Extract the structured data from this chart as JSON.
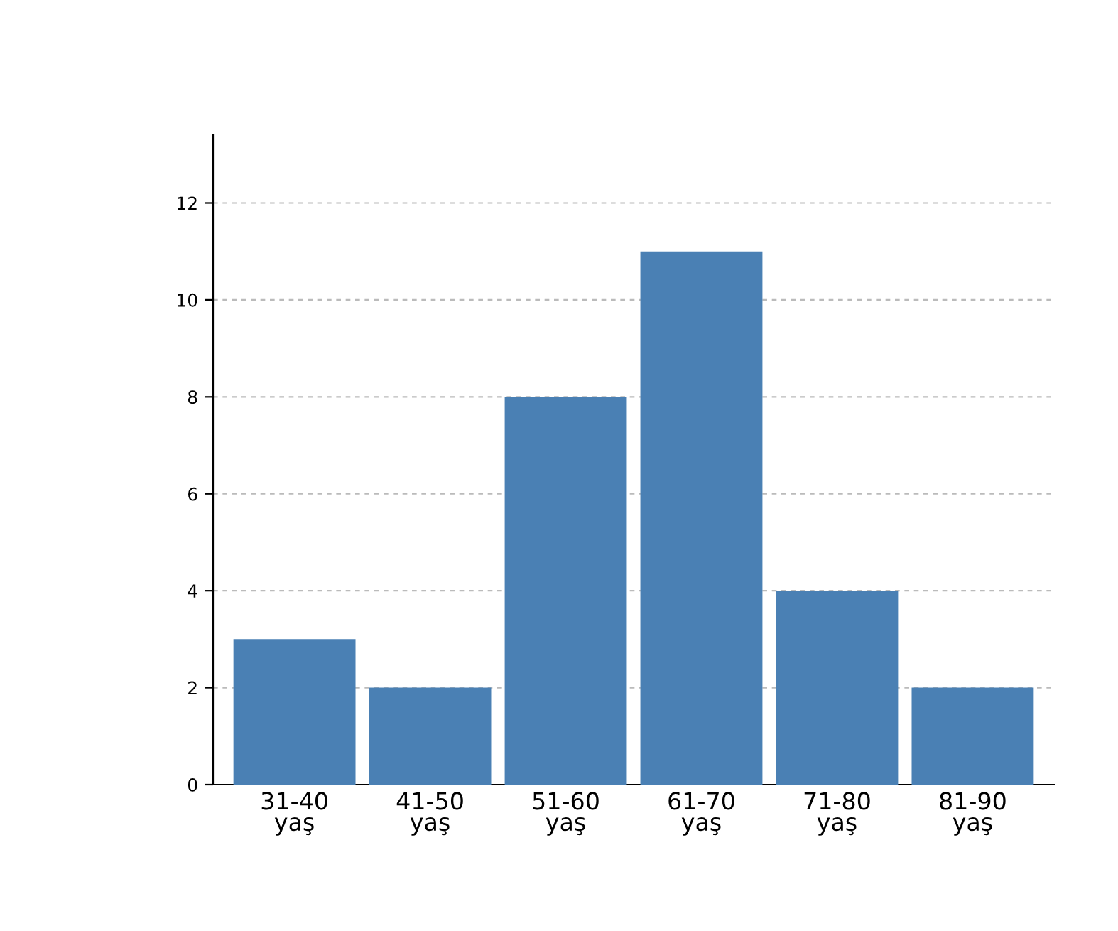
{
  "chart_data": {
    "type": "bar",
    "categories": [
      "31-40\nyaş",
      "41-50\nyaş",
      "51-60\nyaş",
      "61-70\nyaş",
      "71-80\nyaş",
      "81-90\nyaş"
    ],
    "values": [
      3,
      2,
      8,
      11,
      4,
      2
    ],
    "color": "#4a80b4",
    "ylim": [
      0,
      13.4
    ],
    "yticks": [
      0,
      2,
      4,
      6,
      8,
      10,
      12
    ],
    "grid": "y"
  }
}
